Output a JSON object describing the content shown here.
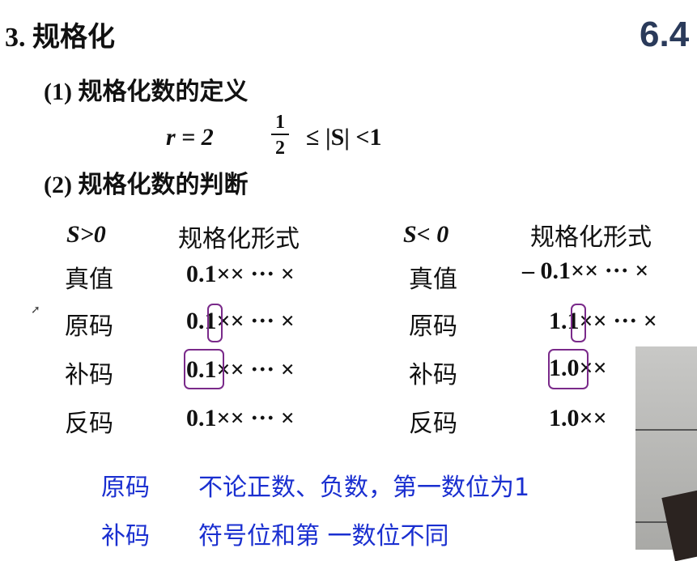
{
  "title": "3. 规格化",
  "section_number": "6.4",
  "item1": {
    "heading": "(1) 规格化数的定义",
    "formula": {
      "r": "r = 2",
      "numerator": "1",
      "denominator": "2",
      "inequality": "≤ |S| <1"
    }
  },
  "item2": {
    "heading": "(2) 规格化数的判断"
  },
  "positive": {
    "header": "S>0",
    "form_header": "规格化形式",
    "rows": [
      {
        "label": "真值",
        "value": "0.1×× ··· ×"
      },
      {
        "label": "原码",
        "value": "0.1×× ··· ×"
      },
      {
        "label": "补码",
        "value": "0.1×× ··· ×"
      },
      {
        "label": "反码",
        "value": "0.1×× ··· ×"
      }
    ]
  },
  "negative": {
    "header": "S< 0",
    "form_header": "规格化形式",
    "rows": [
      {
        "label": "真值",
        "value": "– 0.1×× ··· ×"
      },
      {
        "label": "原码",
        "value": "1.1×× ··· ×"
      },
      {
        "label": "补码",
        "value": "1.0××"
      },
      {
        "label": "反码",
        "value": "1.0××"
      }
    ]
  },
  "notes": [
    {
      "label": "原码",
      "text": "不论正数、负数，第一数位为1"
    },
    {
      "label": "补码",
      "text": "符号位和第 一数位不同"
    }
  ],
  "colors": {
    "highlight_box": "#7a2a8a",
    "note_text": "#1a2fd0",
    "section_number": "#2a3a5a"
  }
}
